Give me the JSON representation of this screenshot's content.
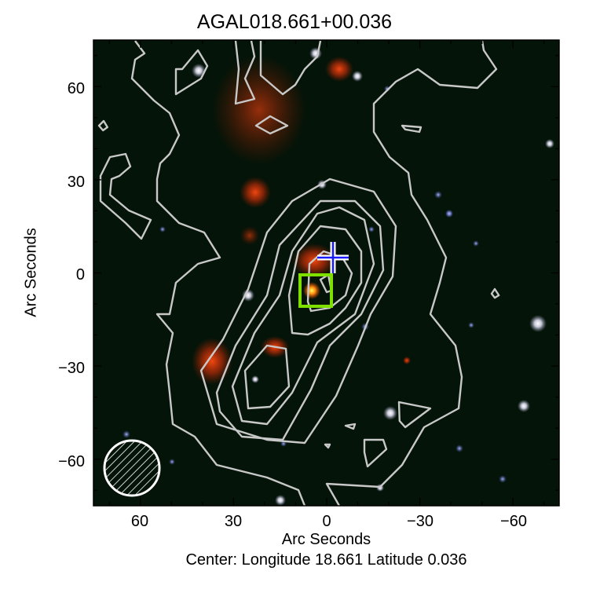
{
  "chart_data": {
    "type": "image",
    "title": "AGAL018.661+00.036",
    "xlabel": "Arc Seconds",
    "ylabel": "Arc Seconds",
    "footer": "Center:  Longitude 18.661 Latitude 0.036",
    "xlim": [
      75,
      -75
    ],
    "ylim": [
      -75,
      75
    ],
    "x_ticks": [
      60,
      30,
      0,
      -30,
      -60
    ],
    "x_tick_labels": [
      "60",
      "30",
      "0",
      "−30",
      "−60"
    ],
    "y_ticks": [
      60,
      30,
      0,
      -30,
      -60
    ],
    "y_tick_labels": [
      "60",
      "30",
      "0",
      "−30",
      "−60"
    ],
    "contour_color": "#c8c8c8",
    "markers": [
      {
        "name": "cross",
        "x": -3,
        "y": 5,
        "color": "#1a1aff"
      },
      {
        "name": "square",
        "x": 3,
        "y": -5,
        "color": "#7fe000"
      }
    ],
    "beam": {
      "x": 62,
      "y": -62,
      "diameter_arcsec": 18
    }
  }
}
